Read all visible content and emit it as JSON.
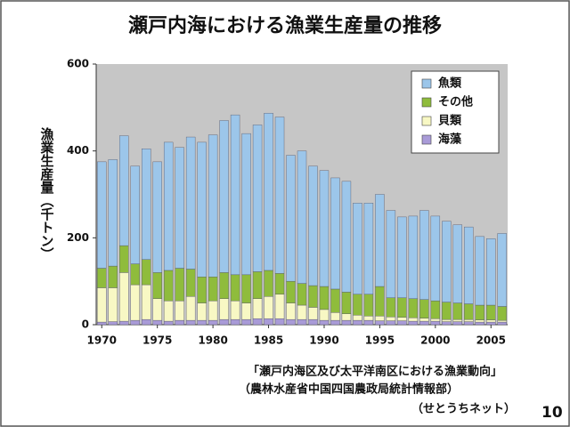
{
  "chart_data": {
    "type": "stacked-bar",
    "title": "瀬戸内海における漁業生産量の推移",
    "y_label": "漁業生産量（千トン）",
    "x": [
      1970,
      1971,
      1972,
      1973,
      1974,
      1975,
      1976,
      1977,
      1978,
      1979,
      1980,
      1981,
      1982,
      1983,
      1984,
      1985,
      1986,
      1987,
      1988,
      1989,
      1990,
      1991,
      1992,
      1993,
      1994,
      1995,
      1996,
      1997,
      1998,
      1999,
      2000,
      2001,
      2002,
      2003,
      2004,
      2005,
      2006
    ],
    "xlim": [
      1969.5,
      2006.5
    ],
    "xticks": [
      1970,
      1975,
      1980,
      1985,
      1990,
      1995,
      2000,
      2005
    ],
    "ylim": [
      0,
      600
    ],
    "yticks": [
      0,
      200,
      400,
      600
    ],
    "grid": false,
    "legend": "top-right",
    "series": [
      {
        "name": "魚類",
        "color": "#9cc6ea",
        "values": [
          245,
          245,
          253,
          225,
          255,
          255,
          295,
          278,
          304,
          310,
          327,
          350,
          368,
          325,
          338,
          362,
          360,
          290,
          305,
          275,
          267,
          256,
          255,
          210,
          210,
          212,
          201,
          186,
          190,
          205,
          195,
          186,
          180,
          177,
          158,
          153,
          168
        ]
      },
      {
        "name": "その他",
        "color": "#8fbc3c",
        "values": [
          45,
          50,
          62,
          48,
          58,
          60,
          70,
          75,
          63,
          60,
          55,
          60,
          60,
          65,
          62,
          60,
          48,
          50,
          50,
          50,
          53,
          54,
          50,
          48,
          50,
          68,
          44,
          45,
          44,
          43,
          41,
          40,
          38,
          36,
          34,
          34,
          32
        ]
      },
      {
        "name": "貝類",
        "color": "#f8f8c4",
        "values": [
          79,
          78,
          112,
          82,
          80,
          50,
          47,
          45,
          55,
          40,
          45,
          48,
          43,
          38,
          46,
          51,
          56,
          38,
          33,
          28,
          25,
          18,
          15,
          12,
          10,
          11,
          9,
          8,
          8,
          7,
          6,
          5,
          5,
          5,
          5,
          5,
          4
        ]
      },
      {
        "name": "海藻",
        "color": "#a99bd8",
        "values": [
          6,
          7,
          8,
          10,
          12,
          10,
          8,
          10,
          10,
          10,
          10,
          12,
          12,
          12,
          14,
          14,
          14,
          12,
          12,
          12,
          10,
          10,
          10,
          10,
          10,
          9,
          9,
          9,
          8,
          8,
          8,
          7,
          7,
          7,
          6,
          6,
          6
        ]
      }
    ]
  },
  "footer": {
    "source": "「瀬戸内海区及び太平洋南区における漁業動向」",
    "agency": "（農林水産省中国四国農政局統計情報部）",
    "site": "（せとうちネット）",
    "page": "10"
  }
}
